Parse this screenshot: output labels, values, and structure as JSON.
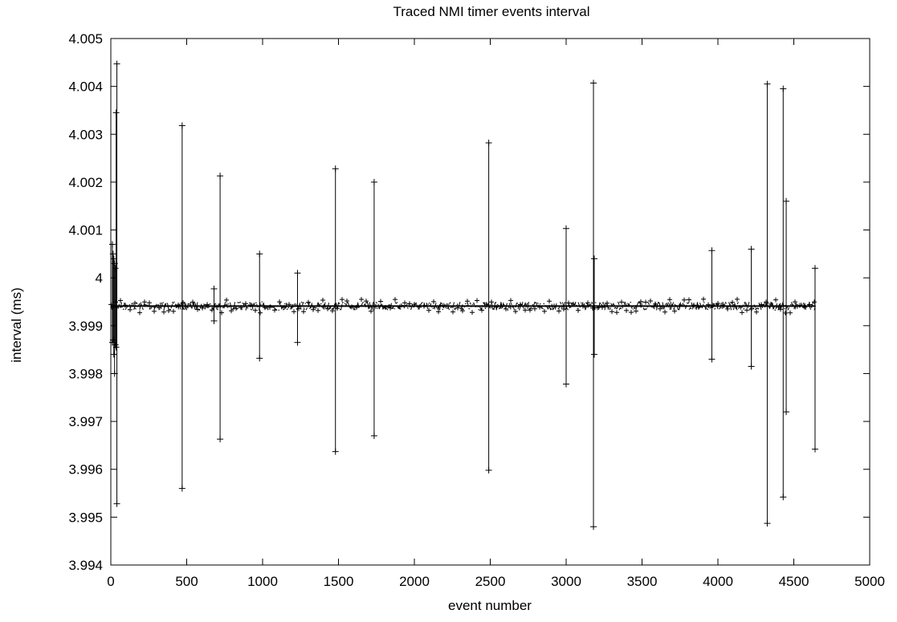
{
  "chart_data": {
    "type": "line",
    "title": "Traced NMI timer events interval",
    "xlabel": "event number",
    "ylabel": "interval (ms)",
    "xlim": [
      0,
      5000
    ],
    "ylim": [
      3.994,
      4.005
    ],
    "x_ticks": [
      0,
      500,
      1000,
      1500,
      2000,
      2500,
      3000,
      3500,
      4000,
      4500,
      5000
    ],
    "x_tick_labels": [
      "0",
      "500",
      "1000",
      "1500",
      "2000",
      "2500",
      "3000",
      "3500",
      "4000",
      "4500",
      "5000"
    ],
    "y_ticks": [
      3.994,
      3.995,
      3.996,
      3.997,
      3.998,
      3.999,
      4.0,
      4.001,
      4.002,
      4.003,
      4.004,
      4.005
    ],
    "y_tick_labels": [
      "3.994",
      "3.995",
      "3.996",
      "3.997",
      "3.998",
      "3.999",
      "4",
      "4.001",
      "4.002",
      "4.003",
      "4.004",
      "4.005"
    ],
    "grid": false,
    "legend": false,
    "marker": "plus",
    "line_color": "#000000",
    "baseline": {
      "x_start": 0,
      "x_end": 4640,
      "level": 3.99941,
      "band_low": 3.99932,
      "band_high": 3.9995
    },
    "spikes": [
      {
        "x": 10,
        "high": 4.0007,
        "low": 3.99865
      },
      {
        "x": 15,
        "high": 4.0005,
        "low": 3.9987
      },
      {
        "x": 20,
        "high": 4.0004,
        "low": 3.9984
      },
      {
        "x": 25,
        "high": 4.0003,
        "low": 3.998
      },
      {
        "x": 30,
        "high": 4.0002,
        "low": 3.9986
      },
      {
        "x": 35,
        "high": 4.00345,
        "low": 3.99855
      },
      {
        "x": 40,
        "high": 4.00447,
        "low": 3.99528
      },
      {
        "x": 470,
        "high": 4.00318,
        "low": 3.9956
      },
      {
        "x": 680,
        "high": 3.99977,
        "low": 3.9991
      },
      {
        "x": 720,
        "high": 4.00213,
        "low": 3.99663
      },
      {
        "x": 980,
        "high": 4.0005,
        "low": 3.99832
      },
      {
        "x": 1230,
        "high": 4.0001,
        "low": 3.99865
      },
      {
        "x": 1480,
        "high": 4.00228,
        "low": 3.99637
      },
      {
        "x": 1735,
        "high": 4.002,
        "low": 3.9967
      },
      {
        "x": 2490,
        "high": 4.00282,
        "low": 3.99598
      },
      {
        "x": 3000,
        "high": 4.00103,
        "low": 3.99778
      },
      {
        "x": 3180,
        "high": 4.00407,
        "low": 3.9948
      },
      {
        "x": 3185,
        "high": 4.0004,
        "low": 3.9984
      },
      {
        "x": 3960,
        "high": 4.00057,
        "low": 3.9983
      },
      {
        "x": 4220,
        "high": 4.0006,
        "low": 3.99815
      },
      {
        "x": 4325,
        "high": 4.00405,
        "low": 3.99487
      },
      {
        "x": 4430,
        "high": 4.00395,
        "low": 3.99542
      },
      {
        "x": 4450,
        "high": 4.0016,
        "low": 3.9972
      },
      {
        "x": 4640,
        "high": 4.0002,
        "low": 3.99642
      }
    ]
  }
}
